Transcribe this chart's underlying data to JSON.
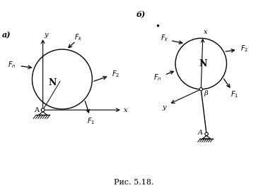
{
  "fig_width": 3.79,
  "fig_height": 2.67,
  "dpi": 100,
  "background": "#ffffff",
  "label_a": "a)",
  "label_b": "б)",
  "caption": "Рис. 5.18.",
  "circle_color": "#000000",
  "arrow_color": "#000000",
  "text_color": "#000000"
}
